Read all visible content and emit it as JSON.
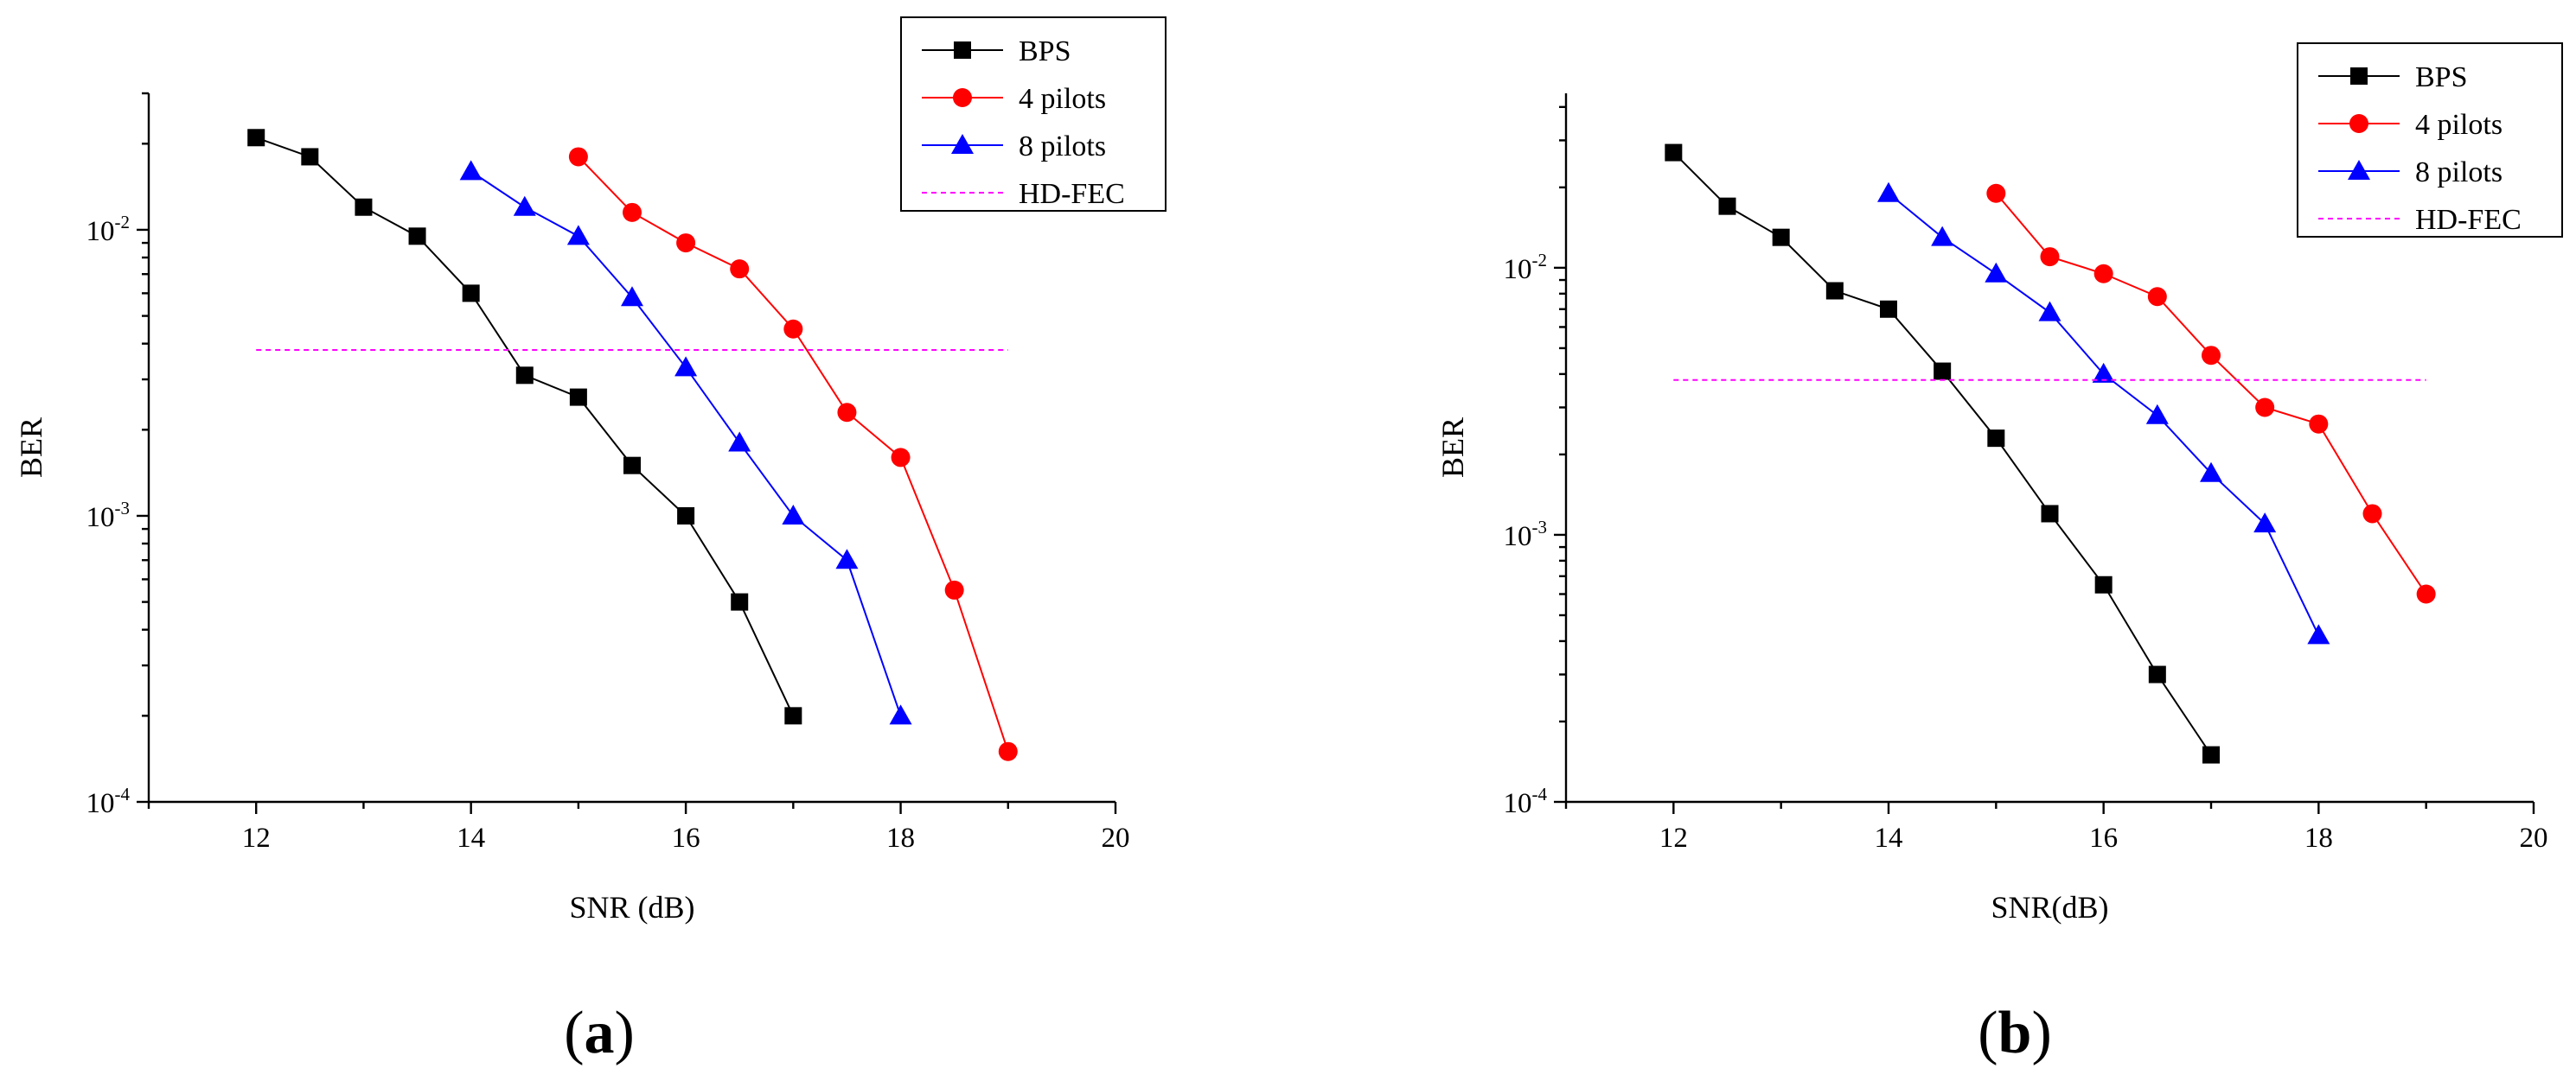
{
  "chart_data": [
    {
      "type": "line",
      "panel": "a",
      "panel_label": "a",
      "xlabel": "SNR (dB)",
      "ylabel": "BER",
      "xlim": [
        11,
        20
      ],
      "ylim": [
        0.0001,
        0.03
      ],
      "yscale": "log",
      "xticks": [
        12,
        14,
        16,
        18,
        20
      ],
      "yticks": [
        {
          "base": "10",
          "exp": "-4",
          "value": 0.0001
        },
        {
          "base": "10",
          "exp": "-3",
          "value": 0.001
        },
        {
          "base": "10",
          "exp": "-2",
          "value": 0.01
        }
      ],
      "legend_position": "top-right",
      "series": [
        {
          "name": "BPS",
          "color": "#000000",
          "marker": "square",
          "x": [
            12,
            12.5,
            13,
            13.5,
            14,
            14.5,
            15,
            15.5,
            16,
            16.5,
            17
          ],
          "y": [
            0.021,
            0.018,
            0.012,
            0.0095,
            0.006,
            0.0031,
            0.0026,
            0.0015,
            0.001,
            0.0005,
            0.0002
          ]
        },
        {
          "name": "4 pilots",
          "color": "#ff0000",
          "marker": "circle",
          "x": [
            15,
            15.5,
            16,
            16.5,
            17,
            17.5,
            18,
            18.5,
            19
          ],
          "y": [
            0.018,
            0.0115,
            0.009,
            0.0073,
            0.0045,
            0.0023,
            0.0016,
            0.00055,
            0.00015
          ]
        },
        {
          "name": "8 pilots",
          "color": "#0000ff",
          "marker": "triangle",
          "x": [
            14,
            14.5,
            15,
            15.5,
            16,
            16.5,
            17,
            17.5,
            18
          ],
          "y": [
            0.016,
            0.012,
            0.0095,
            0.0058,
            0.0033,
            0.0018,
            0.001,
            0.0007,
            0.0002
          ]
        },
        {
          "name": "HD-FEC",
          "color": "#ff00ff",
          "marker": "none",
          "dashed": true,
          "x": [
            12,
            19
          ],
          "y": [
            0.0038,
            0.0038
          ]
        }
      ]
    },
    {
      "type": "line",
      "panel": "b",
      "panel_label": "b",
      "xlabel": "SNR(dB)",
      "ylabel": "BER",
      "xlim": [
        11,
        20
      ],
      "ylim": [
        0.0001,
        0.045
      ],
      "yscale": "log",
      "xticks": [
        12,
        14,
        16,
        18,
        20
      ],
      "yticks": [
        {
          "base": "10",
          "exp": "-4",
          "value": 0.0001
        },
        {
          "base": "10",
          "exp": "-3",
          "value": 0.001
        },
        {
          "base": "10",
          "exp": "-2",
          "value": 0.01
        }
      ],
      "legend_position": "top-right",
      "series": [
        {
          "name": "BPS",
          "color": "#000000",
          "marker": "square",
          "x": [
            12,
            12.5,
            13,
            13.5,
            14,
            14.5,
            15,
            15.5,
            16,
            16.5,
            17
          ],
          "y": [
            0.027,
            0.017,
            0.013,
            0.0082,
            0.007,
            0.0041,
            0.0023,
            0.0012,
            0.00065,
            0.0003,
            0.00015
          ]
        },
        {
          "name": "4 pilots",
          "color": "#ff0000",
          "marker": "circle",
          "x": [
            15,
            15.5,
            16,
            16.5,
            17,
            17.5,
            18,
            18.5,
            19
          ],
          "y": [
            0.019,
            0.011,
            0.0095,
            0.0078,
            0.0047,
            0.003,
            0.0026,
            0.0012,
            0.0006
          ]
        },
        {
          "name": "8 pilots",
          "color": "#0000ff",
          "marker": "triangle",
          "x": [
            14,
            14.5,
            15,
            15.5,
            16,
            16.5,
            17,
            17.5,
            18
          ],
          "y": [
            0.019,
            0.013,
            0.0095,
            0.0068,
            0.004,
            0.0028,
            0.0017,
            0.0011,
            0.00042
          ]
        },
        {
          "name": "HD-FEC",
          "color": "#ff00ff",
          "marker": "none",
          "dashed": true,
          "x": [
            12,
            19
          ],
          "y": [
            0.0038,
            0.0038
          ]
        }
      ]
    }
  ]
}
